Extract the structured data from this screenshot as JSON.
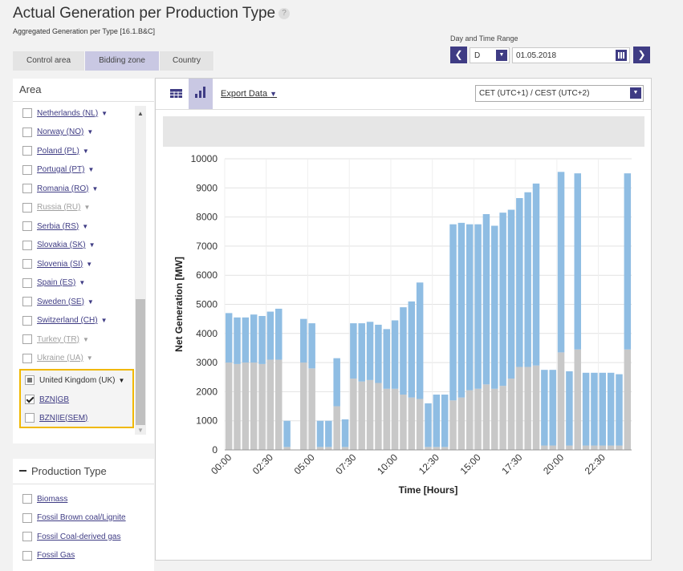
{
  "page": {
    "title": "Actual Generation per Production Type",
    "help": "?",
    "subtitle": "Aggregated Generation per Type [16.1.B&C]"
  },
  "tabs": [
    "Control area",
    "Bidding zone",
    "Country"
  ],
  "date_range": {
    "label": "Day and Time Range",
    "period": "D",
    "date": "01.05.2018"
  },
  "area_panel": {
    "title": "Area",
    "countries": [
      {
        "name": "Netherlands (NL)",
        "disabled": false
      },
      {
        "name": "Norway (NO)",
        "disabled": false
      },
      {
        "name": "Poland (PL)",
        "disabled": false
      },
      {
        "name": "Portugal (PT)",
        "disabled": false
      },
      {
        "name": "Romania (RO)",
        "disabled": false
      },
      {
        "name": "Russia (RU)",
        "disabled": true
      },
      {
        "name": "Serbia (RS)",
        "disabled": false
      },
      {
        "name": "Slovakia (SK)",
        "disabled": false
      },
      {
        "name": "Slovenia (SI)",
        "disabled": false
      },
      {
        "name": "Spain (ES)",
        "disabled": false
      },
      {
        "name": "Sweden (SE)",
        "disabled": false
      },
      {
        "name": "Switzerland (CH)",
        "disabled": false
      },
      {
        "name": "Turkey (TR)",
        "disabled": true
      },
      {
        "name": "Ukraine (UA)",
        "disabled": true
      }
    ],
    "selected_group": {
      "name": "United Kingdom (UK)",
      "zones": [
        {
          "name": "BZN|GB",
          "checked": true
        },
        {
          "name": "BZN|IE(SEM)",
          "checked": false
        }
      ]
    }
  },
  "production_type_panel": {
    "title": "Production Type",
    "items": [
      "Biomass",
      "Fossil Brown coal/Lignite",
      "Fossil Coal-derived gas",
      "Fossil Gas"
    ]
  },
  "chart_toolbar": {
    "export_label": "Export Data",
    "timezone": "CET (UTC+1) / CEST (UTC+2)"
  },
  "colors": {
    "accent": "#3f3c84",
    "bar_blue": "#8fbde3",
    "bar_grey": "#c8c8c8",
    "highlight": "#f0b800"
  },
  "chart_data": {
    "type": "bar",
    "stacked": true,
    "xlabel": "Time [Hours]",
    "ylabel": "Net Generation [MW]",
    "ylim": [
      0,
      10000
    ],
    "yticks": [
      0,
      1000,
      2000,
      3000,
      4000,
      5000,
      6000,
      7000,
      8000,
      9000,
      10000
    ],
    "xtick_labels": [
      "00:00",
      "02:30",
      "05:00",
      "07:30",
      "10:00",
      "12:30",
      "15:00",
      "17:30",
      "20:00",
      "22:30"
    ],
    "grid": true,
    "series": [
      {
        "values": [
          3000,
          2950,
          3000,
          3000,
          2950,
          3100,
          3100,
          100,
          0,
          3000,
          2800,
          100,
          100,
          1500,
          100,
          2450,
          2350,
          2400,
          2300,
          2100,
          2100,
          1900,
          1800,
          1750,
          100,
          100,
          100,
          1700,
          1800,
          2050,
          2100,
          2250,
          2100,
          2200,
          2450,
          2850,
          2850,
          2900,
          150,
          150,
          3350,
          150,
          3450,
          150,
          150,
          150,
          150,
          150,
          3450
        ]
      },
      {
        "values": [
          1700,
          1600,
          1550,
          1650,
          1650,
          1650,
          1750,
          900,
          0,
          1500,
          1550,
          900,
          900,
          1650,
          950,
          1900,
          2000,
          2000,
          2000,
          2050,
          2350,
          3000,
          3300,
          4000,
          1500,
          1800,
          1800,
          6050,
          6000,
          5700,
          5650,
          5850,
          5600,
          5950,
          5800,
          5800,
          6000,
          6250,
          2600,
          2600,
          6200,
          2550,
          6050,
          2500,
          2500,
          2500,
          2500,
          2450,
          6050
        ]
      }
    ]
  }
}
